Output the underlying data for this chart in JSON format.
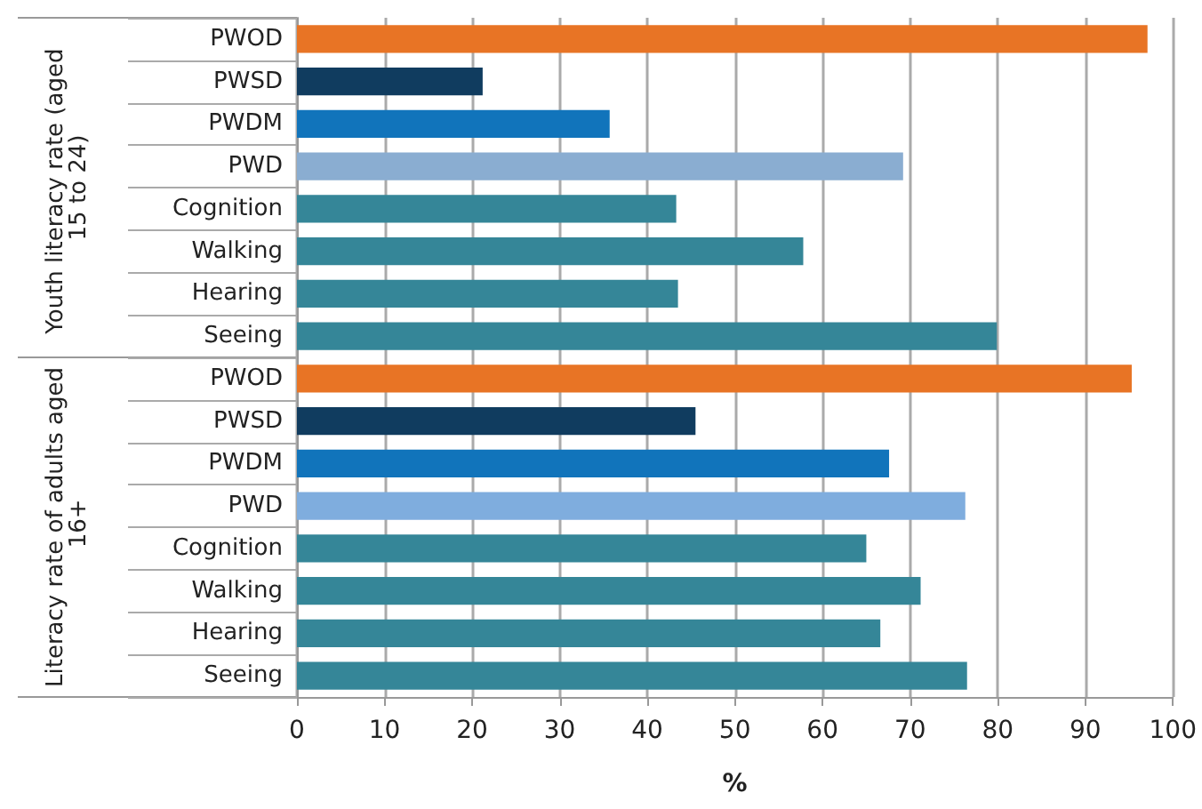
{
  "chart_data": {
    "type": "bar",
    "orientation": "horizontal",
    "xlabel": "%",
    "categories": [
      "PWOD",
      "PWSD",
      "PWDM",
      "PWD",
      "Cognition",
      "Walking",
      "Hearing",
      "Seeing",
      "PWOD",
      "PWSD",
      "PWDM",
      "PWD",
      "Cognition",
      "Walking",
      "Hearing",
      "Seeing"
    ],
    "values": [
      97.1,
      21.2,
      35.7,
      69.2,
      43.3,
      57.8,
      43.5,
      79.9,
      95.3,
      45.5,
      67.6,
      76.3,
      65.0,
      71.2,
      66.6,
      76.5
    ],
    "colors": [
      "#e87425",
      "#103c5f",
      "#1174bb",
      "#8aadd1",
      "#358698",
      "#358698",
      "#358698",
      "#358698",
      "#e87425",
      "#103c5f",
      "#1174bb",
      "#7fadde",
      "#358698",
      "#358698",
      "#358698",
      "#358698"
    ],
    "annotations": [
      "Youth literacy rate (aged 15 to 24)",
      "Literacy rate of adults aged 16+"
    ],
    "xlim": [
      0,
      100
    ],
    "xticks": [
      0,
      10,
      20,
      30,
      40,
      50,
      60,
      70,
      80,
      90,
      100
    ],
    "grid": "x"
  }
}
